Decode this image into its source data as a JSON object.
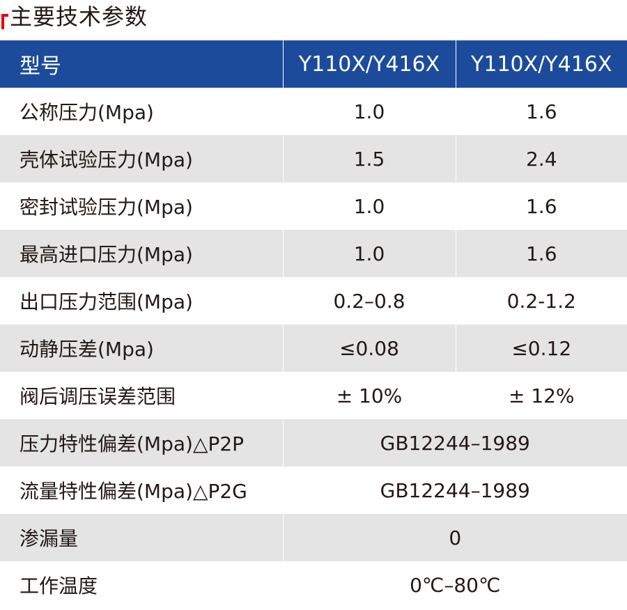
{
  "title": "主要技术参数",
  "colors": {
    "header_bg": "#1d4b9b",
    "stripe": "#e4e4e4",
    "title_mark": "#e60012"
  },
  "table": {
    "headers": [
      "型号",
      "Y110X/Y416X",
      "Y110X/Y416X"
    ],
    "rows": [
      {
        "label": "公称压力(Mpa)",
        "values": [
          "1.0",
          "1.6"
        ]
      },
      {
        "label": "壳体试验压力(Mpa)",
        "values": [
          "1.5",
          "2.4"
        ]
      },
      {
        "label": "密封试验压力(Mpa)",
        "values": [
          "1.0",
          "1.6"
        ]
      },
      {
        "label": "最高进口压力(Mpa)",
        "values": [
          "1.0",
          "1.6"
        ]
      },
      {
        "label": "出口压力范围(Mpa)",
        "values": [
          "0.2–0.8",
          "0.2-1.2"
        ]
      },
      {
        "label": "动静压差(Mpa)",
        "values": [
          "≤0.08",
          "≤0.12"
        ]
      },
      {
        "label": "阀后调压误差范围",
        "values": [
          "± 10%",
          "± 12%"
        ]
      },
      {
        "label": "压力特性偏差(Mpa)△P2P",
        "values": [
          "GB12244–1989"
        ]
      },
      {
        "label": "流量特性偏差(Mpa)△P2G",
        "values": [
          "GB12244–1989"
        ]
      },
      {
        "label": "渗漏量",
        "values": [
          "0"
        ]
      },
      {
        "label": "工作温度",
        "values": [
          "0℃–80℃"
        ]
      }
    ]
  }
}
